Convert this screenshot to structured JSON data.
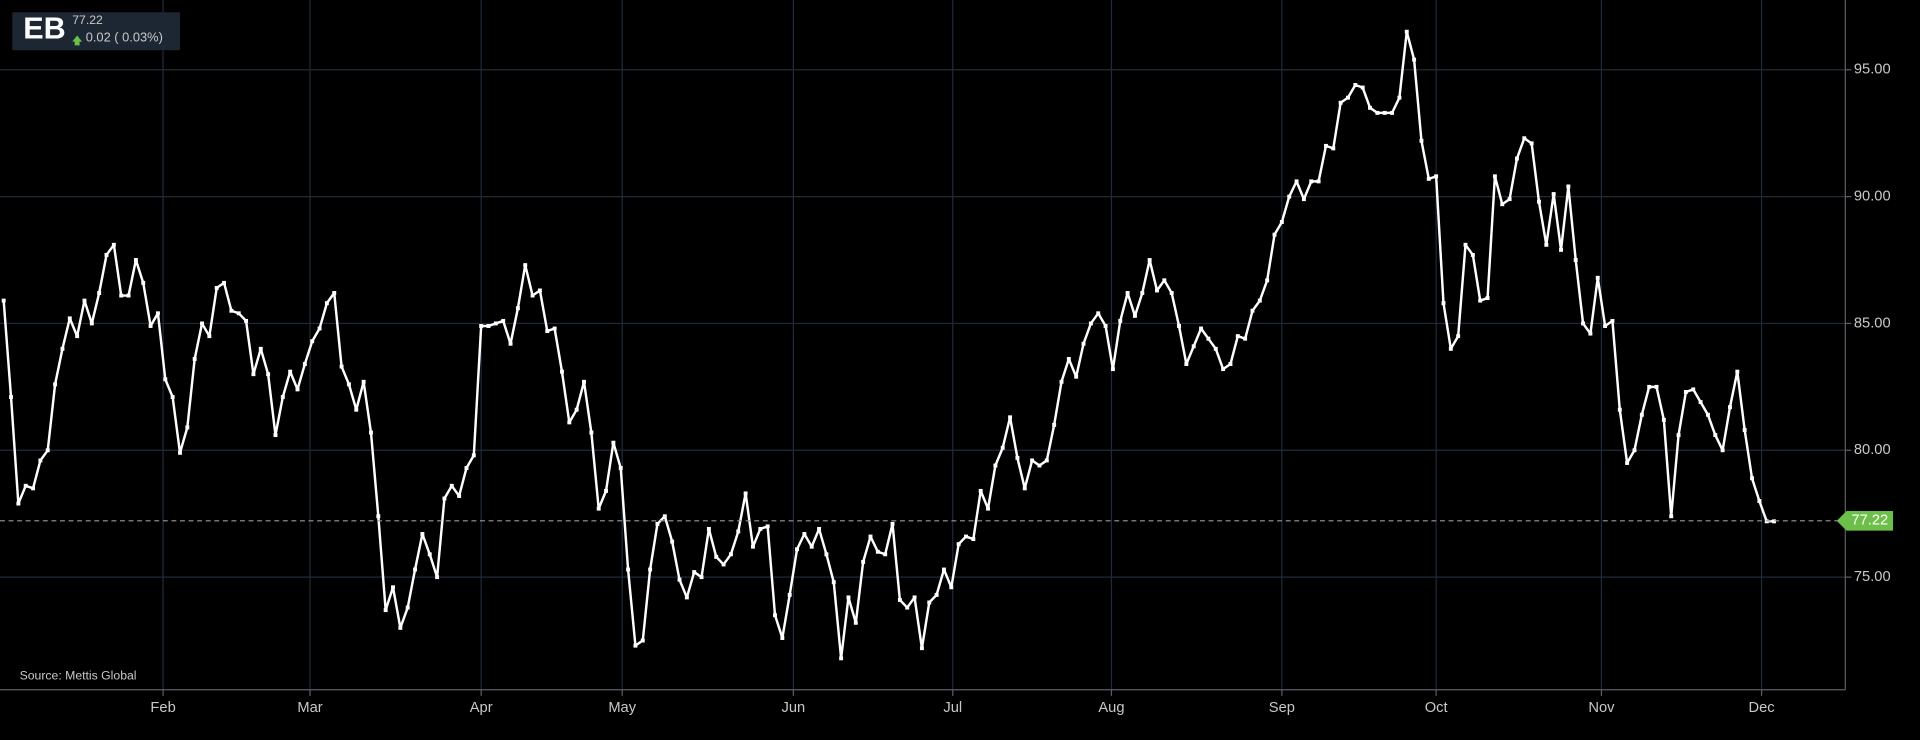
{
  "header": {
    "symbol": "EB",
    "change": "0.02 ( 0.03%)"
  },
  "source": "Source: Mettis Global",
  "chart_data": {
    "type": "line",
    "color": "#ffffff",
    "last_price": 77.22,
    "ylim": [
      70.56,
      97.75
    ],
    "yticks": [
      {
        "value": 75,
        "label": "75.00"
      },
      {
        "value": 80,
        "label": "80.00"
      },
      {
        "value": 85,
        "label": "85.00"
      },
      {
        "value": 90,
        "label": "90.00"
      },
      {
        "value": 95,
        "label": "95.00"
      }
    ],
    "xlim": [
      -0.5,
      250.7
    ],
    "xticks": [
      {
        "value": 21.7,
        "label": "Feb"
      },
      {
        "value": 41.7,
        "label": "Mar"
      },
      {
        "value": 65,
        "label": "Apr"
      },
      {
        "value": 84.2,
        "label": "May"
      },
      {
        "value": 107.5,
        "label": "Jun"
      },
      {
        "value": 129.2,
        "label": "Jul"
      },
      {
        "value": 150.8,
        "label": "Aug"
      },
      {
        "value": 174,
        "label": "Sep"
      },
      {
        "value": 195,
        "label": "Oct"
      },
      {
        "value": 217.5,
        "label": "Nov"
      },
      {
        "value": 239.3,
        "label": "Dec"
      }
    ],
    "grid": true,
    "values": [
      85.9,
      82.1,
      77.9,
      78.6,
      78.5,
      79.6,
      80.0,
      82.6,
      84.0,
      85.2,
      84.5,
      85.9,
      85.0,
      86.2,
      87.7,
      88.1,
      86.1,
      86.1,
      87.5,
      86.6,
      84.9,
      85.4,
      82.8,
      82.1,
      79.9,
      80.9,
      83.6,
      85.0,
      84.5,
      86.4,
      86.6,
      85.5,
      85.4,
      85.1,
      83.0,
      84.0,
      83.0,
      80.6,
      82.1,
      83.1,
      82.4,
      83.4,
      84.3,
      84.8,
      85.8,
      86.2,
      83.3,
      82.6,
      81.6,
      82.7,
      80.7,
      77.4,
      73.7,
      74.6,
      73.0,
      73.8,
      75.3,
      76.7,
      75.9,
      75.0,
      78.1,
      78.6,
      78.2,
      79.3,
      79.8,
      84.9,
      84.9,
      85.0,
      85.1,
      84.2,
      85.6,
      87.3,
      86.1,
      86.3,
      84.7,
      84.8,
      83.1,
      81.1,
      81.6,
      82.7,
      80.7,
      77.7,
      78.4,
      80.3,
      79.3,
      75.3,
      72.3,
      72.5,
      75.3,
      77.1,
      77.4,
      76.4,
      74.9,
      74.2,
      75.2,
      75.0,
      76.9,
      75.8,
      75.5,
      75.9,
      76.8,
      78.3,
      76.2,
      76.9,
      77.0,
      73.5,
      72.6,
      74.3,
      76.1,
      76.7,
      76.2,
      76.9,
      75.9,
      74.8,
      71.8,
      74.2,
      73.2,
      75.6,
      76.6,
      76.0,
      75.9,
      77.1,
      74.1,
      73.8,
      74.2,
      72.2,
      74.0,
      74.3,
      75.3,
      74.6,
      76.3,
      76.6,
      76.5,
      78.4,
      77.7,
      79.4,
      80.1,
      81.3,
      79.7,
      78.5,
      79.6,
      79.4,
      79.6,
      81.0,
      82.7,
      83.6,
      82.9,
      84.2,
      85.0,
      85.4,
      84.9,
      83.2,
      85.1,
      86.2,
      85.3,
      86.2,
      87.5,
      86.3,
      86.7,
      86.2,
      84.9,
      83.4,
      84.1,
      84.8,
      84.4,
      84.0,
      83.2,
      83.4,
      84.5,
      84.4,
      85.5,
      85.9,
      86.7,
      88.5,
      89.0,
      90.0,
      90.6,
      89.9,
      90.6,
      90.6,
      92.0,
      91.9,
      93.7,
      93.9,
      94.4,
      94.3,
      93.5,
      93.3,
      93.3,
      93.3,
      93.9,
      96.5,
      95.4,
      92.2,
      90.7,
      90.8,
      85.8,
      84.0,
      84.5,
      88.1,
      87.7,
      85.9,
      86.0,
      90.8,
      89.7,
      89.9,
      91.5,
      92.3,
      92.1,
      89.8,
      88.1,
      90.1,
      87.9,
      90.4,
      87.5,
      85.0,
      84.6,
      86.8,
      84.9,
      85.1,
      81.6,
      79.5,
      80.0,
      81.4,
      82.5,
      82.5,
      81.2,
      77.4,
      80.6,
      82.3,
      82.4,
      81.9,
      81.4,
      80.6,
      80.0,
      81.7,
      83.1,
      80.8,
      78.9,
      78.0,
      77.2,
      77.2
    ]
  }
}
